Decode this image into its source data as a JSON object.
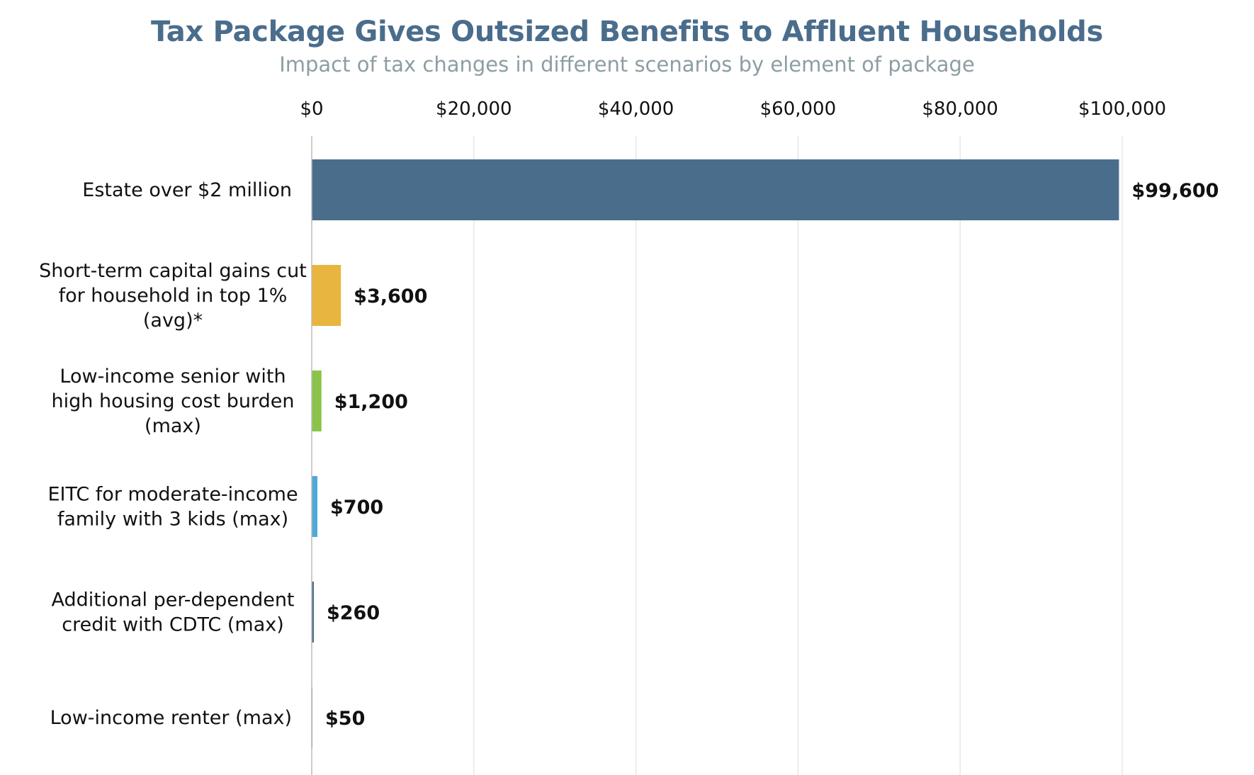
{
  "chart_data": {
    "type": "bar",
    "orientation": "horizontal",
    "title": "Tax Package Gives Outsized Benefits to Affluent Households",
    "subtitle": "Impact of tax changes in different scenarios by element of package",
    "xlim": [
      0,
      100000
    ],
    "x_ticks": [
      0,
      20000,
      40000,
      60000,
      80000,
      100000
    ],
    "x_tick_labels": [
      "$0",
      "$20,000",
      "$40,000",
      "$60,000",
      "$80,000",
      "$100,000"
    ],
    "axis_position": "top",
    "grid": true,
    "categories": [
      [
        "Estate over $2 million"
      ],
      [
        "Short-term capital gains cut",
        "for household in top 1%",
        "(avg)*"
      ],
      [
        "Low-income senior with",
        "high housing cost burden",
        "(max)"
      ],
      [
        "EITC for moderate-income",
        "family with 3 kids (max)"
      ],
      [
        "Additional per-dependent",
        "credit with CDTC (max)"
      ],
      [
        "Low-income renter (max)"
      ]
    ],
    "values": [
      99600,
      3600,
      1200,
      700,
      260,
      50
    ],
    "value_labels": [
      "$99,600",
      "$3,600",
      "$1,200",
      "$700",
      "$260",
      "$50"
    ],
    "colors": [
      "#4a6d8c",
      "#e8b53e",
      "#8bc34a",
      "#4fa8d8",
      "#4a6d8c",
      "#4a6d8c"
    ],
    "gridline_color": "#e6e6e6",
    "axis_color": "#bbbbbb"
  }
}
